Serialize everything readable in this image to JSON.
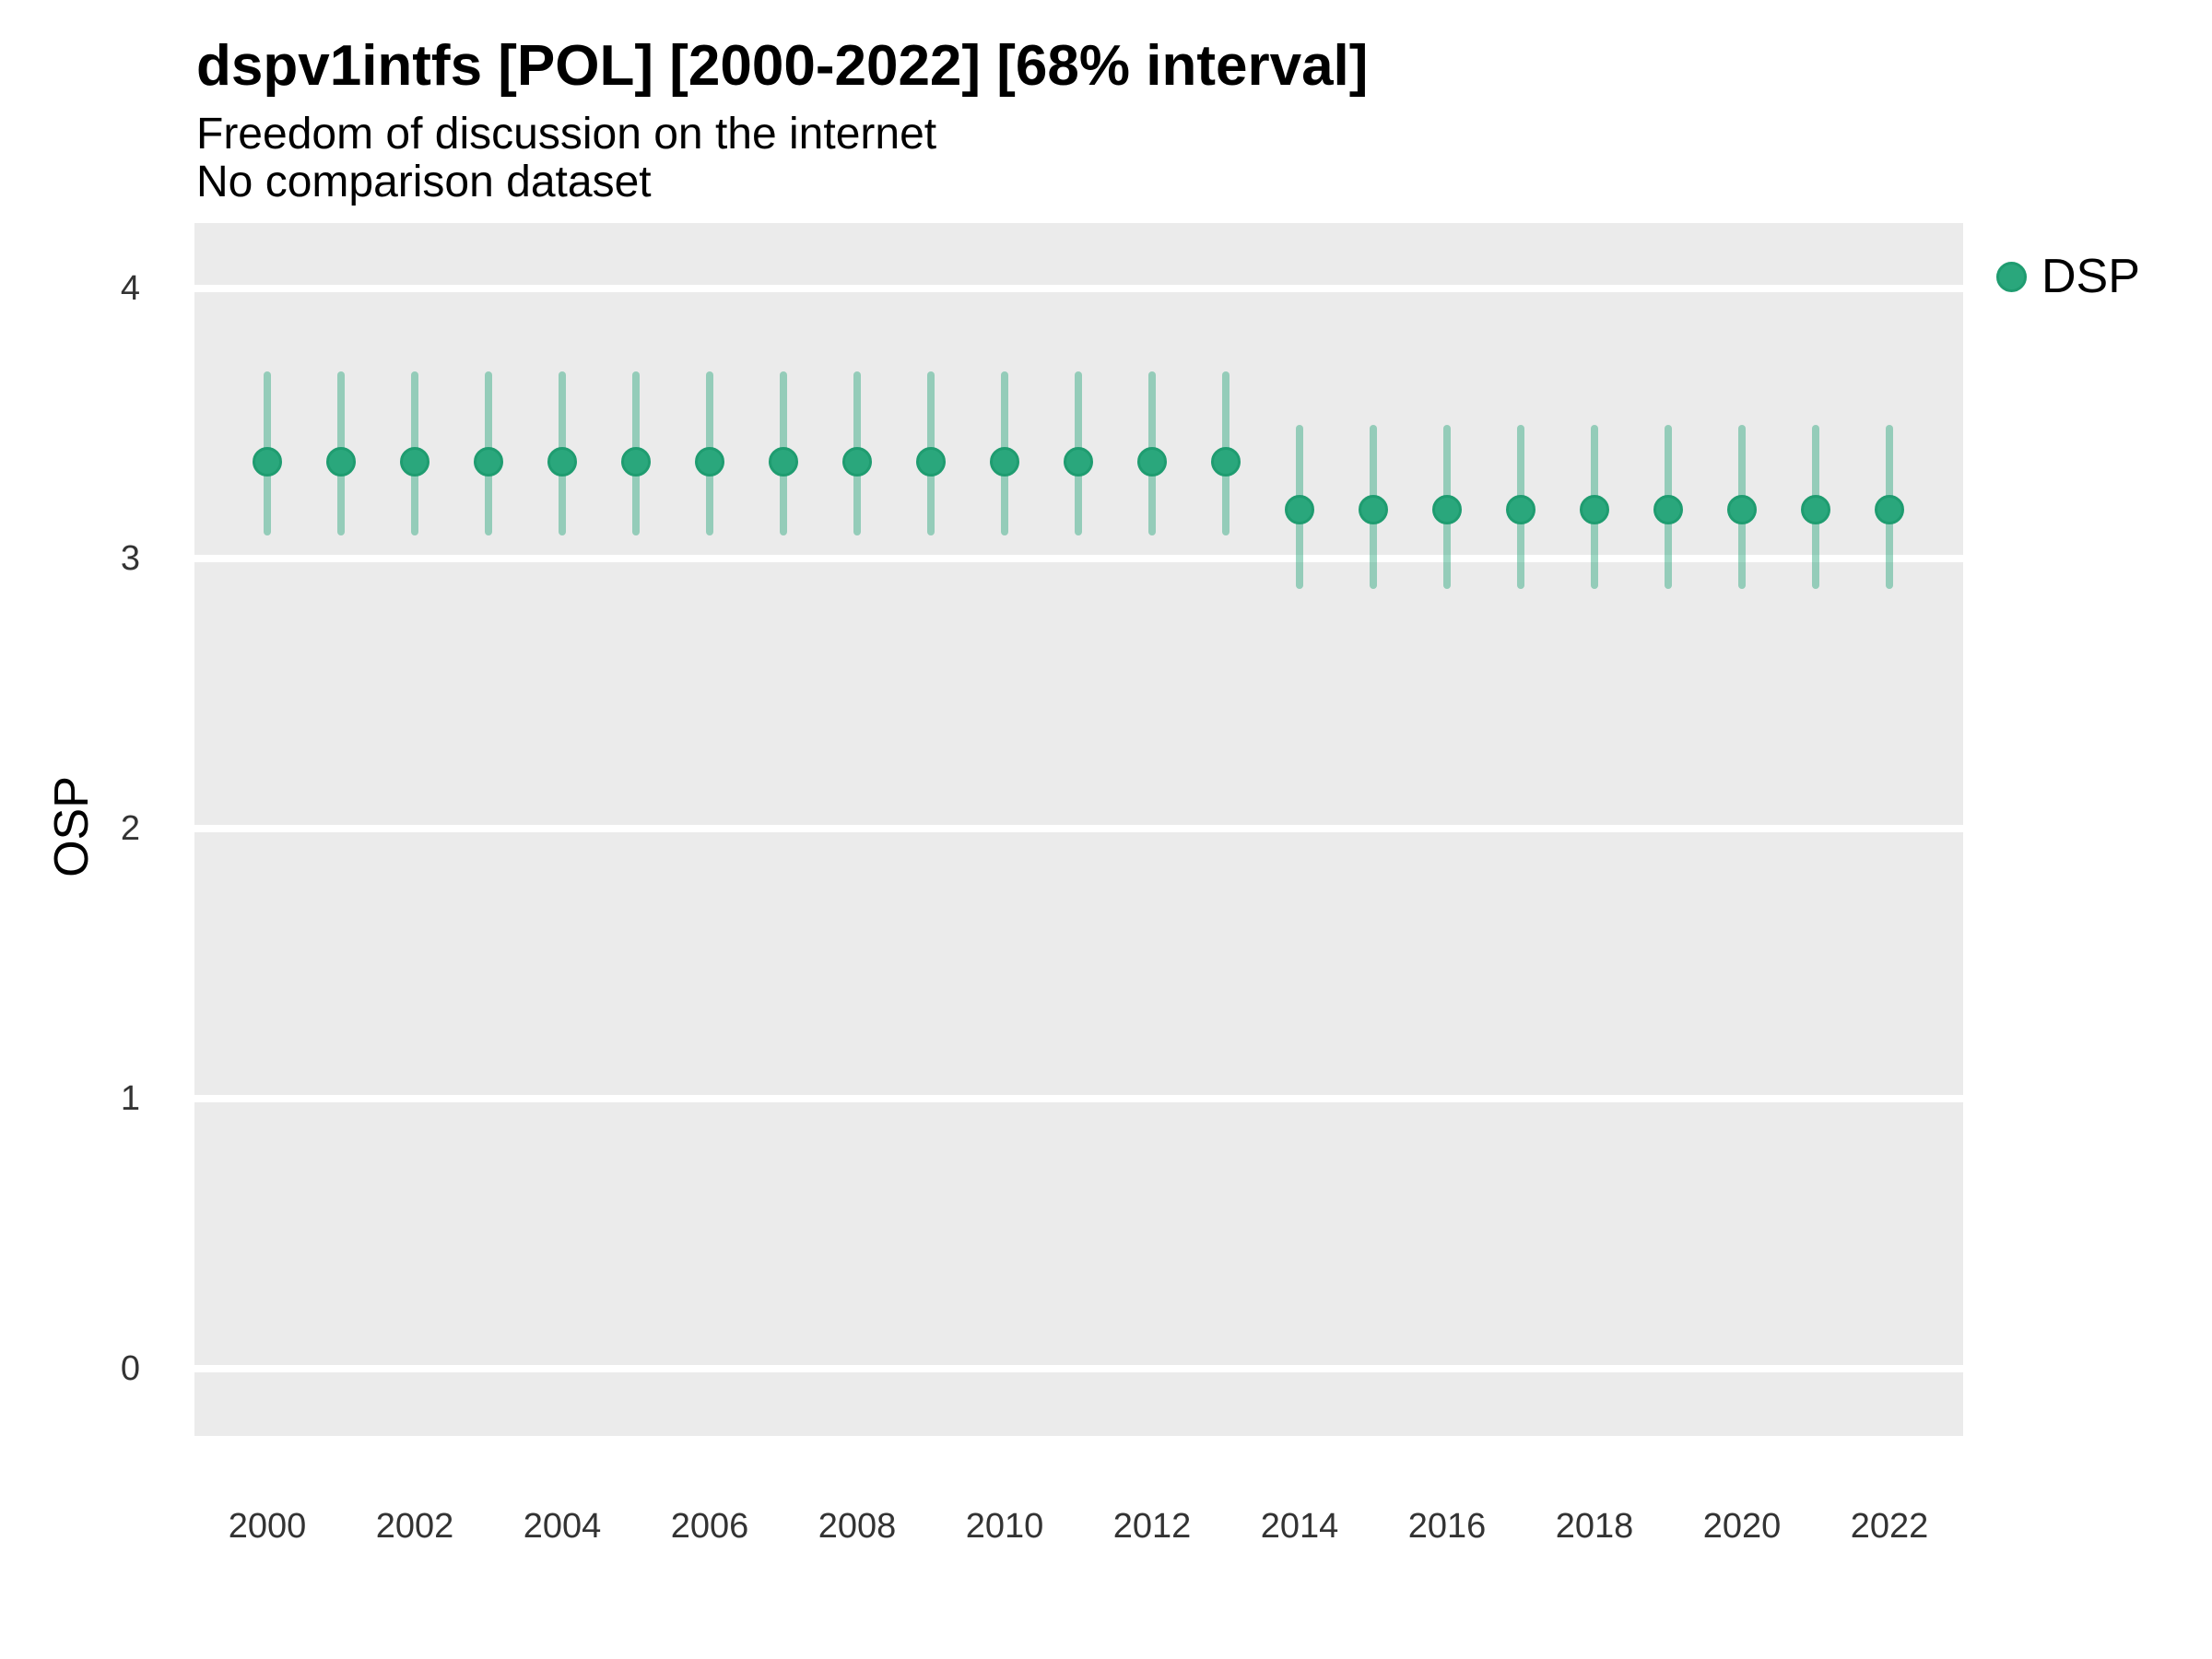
{
  "header": {
    "title": "dspv1intfs [POL] [2000-2022] [68% interval]",
    "subtitle": "Freedom of discussion on the internet",
    "note": "No comparison dataset"
  },
  "legend": {
    "label": "DSP"
  },
  "colors": {
    "point": "#2aa77c",
    "point_border": "#1f9c70",
    "interval": "rgba(42,167,124,0.45)",
    "panel_bg": "#ebebeb",
    "gridline": "#ffffff",
    "tick_text": "#333333"
  },
  "chart_data": {
    "type": "scatter",
    "title": "dspv1intfs [POL] [2000-2022] [68% interval]",
    "subtitle": "Freedom of discussion on the internet",
    "note": "No comparison dataset",
    "interval": "68%",
    "xlabel": "",
    "ylabel": "OSP",
    "x": [
      2000,
      2001,
      2002,
      2003,
      2004,
      2005,
      2006,
      2007,
      2008,
      2009,
      2010,
      2011,
      2012,
      2013,
      2014,
      2015,
      2016,
      2017,
      2018,
      2019,
      2020,
      2021,
      2022
    ],
    "series": [
      {
        "name": "DSP",
        "values": [
          3.36,
          3.36,
          3.36,
          3.36,
          3.36,
          3.36,
          3.36,
          3.36,
          3.36,
          3.36,
          3.36,
          3.36,
          3.36,
          3.36,
          3.18,
          3.18,
          3.18,
          3.18,
          3.18,
          3.18,
          3.18,
          3.18,
          3.18
        ],
        "lower": [
          3.1,
          3.1,
          3.1,
          3.1,
          3.1,
          3.1,
          3.1,
          3.1,
          3.1,
          3.1,
          3.1,
          3.1,
          3.1,
          3.1,
          2.9,
          2.9,
          2.9,
          2.9,
          2.9,
          2.9,
          2.9,
          2.9,
          2.9
        ],
        "upper": [
          3.68,
          3.68,
          3.68,
          3.68,
          3.68,
          3.68,
          3.68,
          3.68,
          3.68,
          3.68,
          3.68,
          3.68,
          3.68,
          3.68,
          3.48,
          3.48,
          3.48,
          3.48,
          3.48,
          3.48,
          3.48,
          3.48,
          3.48
        ]
      }
    ],
    "xticks": [
      2000,
      2002,
      2004,
      2006,
      2008,
      2010,
      2012,
      2014,
      2016,
      2018,
      2020,
      2022
    ],
    "yticks": [
      0,
      1,
      2,
      3,
      4
    ],
    "ylim": [
      -0.25,
      4.24
    ],
    "grid": "horizontal-major-only",
    "legend_position": "right-top"
  }
}
